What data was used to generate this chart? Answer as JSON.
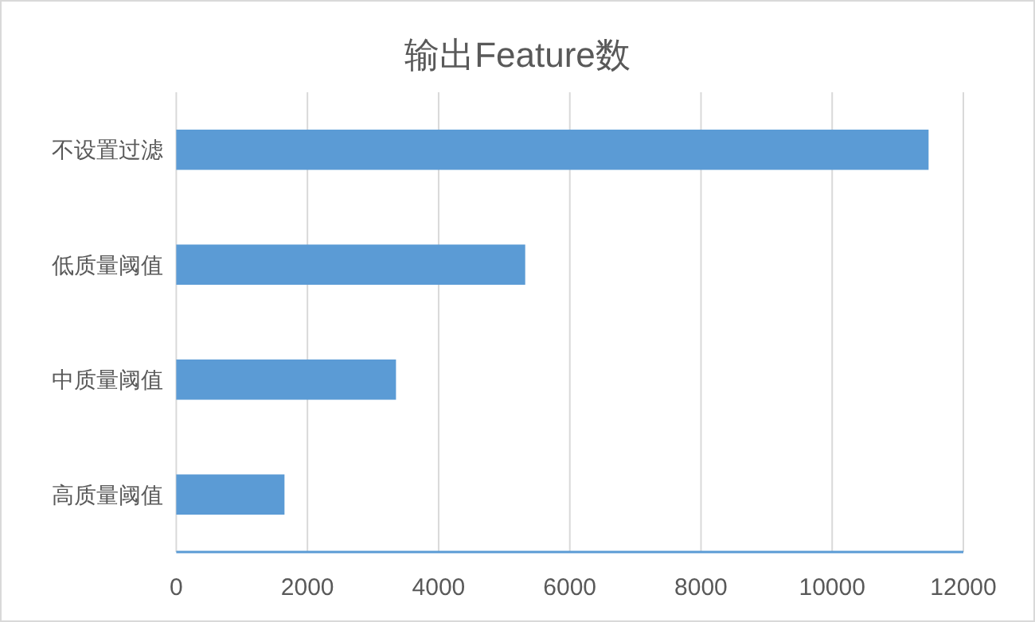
{
  "chart_data": {
    "type": "bar",
    "orientation": "horizontal",
    "title": "输出Feature数",
    "categories": [
      "不设置过滤",
      "低质量阈值",
      "中质量阈值",
      "高质量阈值"
    ],
    "values": [
      11470,
      5320,
      3350,
      1650
    ],
    "color": "#5b9bd5",
    "xlim": [
      0,
      12000
    ],
    "xticks": [
      0,
      2000,
      4000,
      6000,
      8000,
      10000,
      12000
    ],
    "grid": "x"
  }
}
